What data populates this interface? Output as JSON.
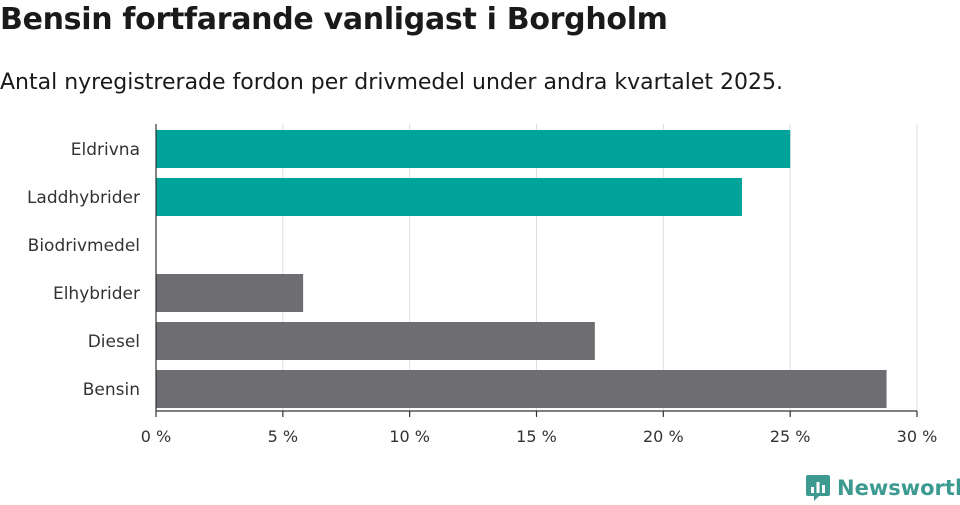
{
  "title": "Bensin fortfarande vanligast i Borgholm",
  "subtitle": "Antal nyregistrerade fordon per drivmedel under andra kvartalet 2025.",
  "brand": {
    "name": "Newsworthy",
    "color": "#3d9a91"
  },
  "colors": {
    "highlight": "#00a39a",
    "other": "#6e6d72",
    "grid": "#dddddd",
    "axis": "#333333"
  },
  "chart_data": {
    "type": "bar",
    "orientation": "horizontal",
    "categories": [
      "Eldrivna",
      "Laddhybrider",
      "Biodrivmedel",
      "Elhybrider",
      "Diesel",
      "Bensin"
    ],
    "values": [
      25.0,
      23.1,
      0,
      5.8,
      17.3,
      28.8
    ],
    "groups": [
      "highlight",
      "highlight",
      "highlight",
      "other",
      "other",
      "other"
    ],
    "unit": "%",
    "xlim": [
      0,
      30
    ],
    "xticks": [
      0,
      5,
      10,
      15,
      20,
      25,
      30
    ],
    "xtick_labels": [
      "0 %",
      "5 %",
      "10 %",
      "15 %",
      "20 %",
      "25 %",
      "30 %"
    ],
    "grid": true
  }
}
